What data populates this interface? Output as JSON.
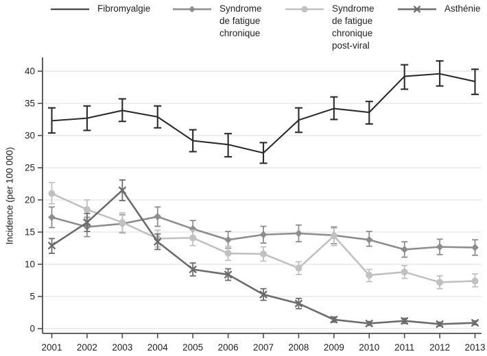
{
  "chart_data": {
    "type": "line",
    "title": "",
    "xlabel": "",
    "ylabel": "Incidence (per 100 000)",
    "x": [
      2001,
      2002,
      2003,
      2004,
      2005,
      2006,
      2007,
      2008,
      2009,
      2010,
      2011,
      2012,
      2013
    ],
    "ylim": [
      0,
      42
    ],
    "yticks": [
      0,
      5,
      10,
      15,
      20,
      25,
      30,
      35,
      40
    ],
    "grid": "horizontal",
    "error_bars": true,
    "legend_position": "top",
    "series": [
      {
        "name": "Fibromyalgie",
        "marker": "none",
        "color": "#2b2b2b",
        "values": [
          32.3,
          32.7,
          33.9,
          32.9,
          29.2,
          28.6,
          27.3,
          32.4,
          34.2,
          33.6,
          39.2,
          39.6,
          38.4
        ],
        "ci_low": [
          30.4,
          30.8,
          32.2,
          31.2,
          27.5,
          26.7,
          25.7,
          30.5,
          32.5,
          31.8,
          37.2,
          37.7,
          36.4
        ],
        "ci_high": [
          34.3,
          34.6,
          35.7,
          34.6,
          30.9,
          30.3,
          28.9,
          34.3,
          36.0,
          35.3,
          41.0,
          41.6,
          40.3
        ]
      },
      {
        "name": "Syndrome de fatigue chronique",
        "marker": "diamond",
        "color": "#8d8d8d",
        "values": [
          17.3,
          15.8,
          16.3,
          17.4,
          15.5,
          13.8,
          14.6,
          14.8,
          14.5,
          13.8,
          12.3,
          12.7,
          12.6
        ],
        "ci_low": [
          15.7,
          14.3,
          14.9,
          15.9,
          14.2,
          12.5,
          13.3,
          13.5,
          13.2,
          12.8,
          11.1,
          11.5,
          11.4
        ],
        "ci_high": [
          18.9,
          17.3,
          17.7,
          18.9,
          16.8,
          15.1,
          15.9,
          16.1,
          15.8,
          15.1,
          13.5,
          13.9,
          13.8
        ]
      },
      {
        "name": "Syndrome de fatigue chronique post-viral",
        "marker": "circle",
        "color": "#c1c1c1",
        "values": [
          21.0,
          18.5,
          16.5,
          14.0,
          14.1,
          11.7,
          11.6,
          9.4,
          14.4,
          8.3,
          8.8,
          7.2,
          7.4
        ],
        "ci_low": [
          19.4,
          17.0,
          15.0,
          12.7,
          12.9,
          10.6,
          10.5,
          8.4,
          12.9,
          7.3,
          7.8,
          6.2,
          6.5
        ],
        "ci_high": [
          22.7,
          20.0,
          18.0,
          15.3,
          15.3,
          12.8,
          12.7,
          10.4,
          15.6,
          9.2,
          9.8,
          8.2,
          8.5
        ]
      },
      {
        "name": "Asthénie",
        "marker": "x",
        "color": "#6c6c6c",
        "values": [
          12.9,
          16.5,
          21.5,
          13.5,
          9.2,
          8.4,
          5.3,
          3.9,
          1.4,
          0.8,
          1.2,
          0.7,
          0.9
        ],
        "ci_low": [
          11.7,
          15.1,
          19.9,
          12.3,
          8.2,
          7.5,
          4.4,
          3.1,
          1.0,
          0.5,
          0.8,
          0.4,
          0.6
        ],
        "ci_high": [
          14.0,
          17.9,
          23.1,
          14.7,
          10.2,
          9.3,
          6.2,
          4.7,
          1.8,
          1.1,
          1.6,
          1.0,
          1.2
        ]
      }
    ]
  },
  "axis": {
    "x_tick_labels": [
      "2001",
      "2002",
      "2003",
      "2004",
      "2005",
      "2006",
      "2007",
      "2008",
      "2009",
      "2010",
      "2011",
      "2012",
      "2013"
    ],
    "y_tick_labels": [
      "0",
      "5",
      "10",
      "15",
      "20",
      "25",
      "30",
      "35",
      "40"
    ]
  }
}
